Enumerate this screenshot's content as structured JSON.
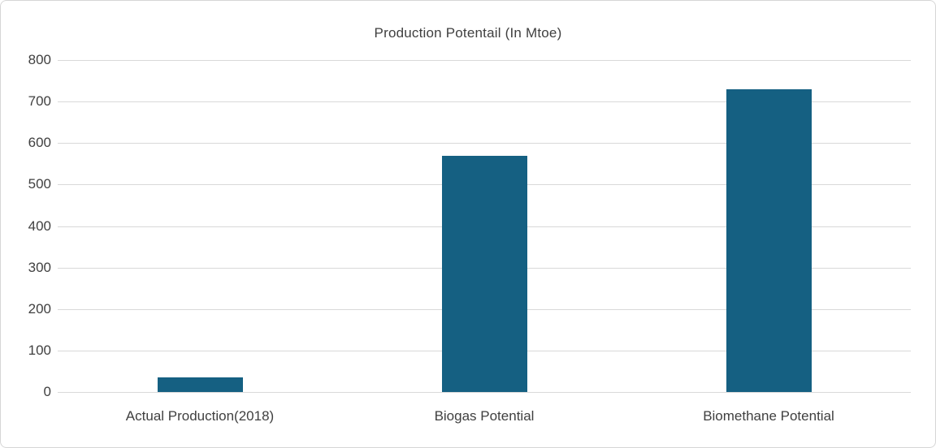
{
  "chart_data": {
    "type": "bar",
    "title": "Production Potentail (In Mtoe)",
    "categories": [
      "Actual Production(2018)",
      "Biogas Potential",
      "Biomethane Potential"
    ],
    "values": [
      35,
      570,
      730
    ],
    "xlabel": "",
    "ylabel": "",
    "ylim": [
      0,
      800
    ],
    "ytick_step": 100,
    "ytick_labels": [
      "0",
      "100",
      "200",
      "300",
      "400",
      "500",
      "600",
      "700",
      "800"
    ],
    "grid": true,
    "legend_position": "none",
    "bar_color": "#156082",
    "gridline_color": "#d9d9d9",
    "text_color": "#404040",
    "background_color": "#ffffff"
  }
}
